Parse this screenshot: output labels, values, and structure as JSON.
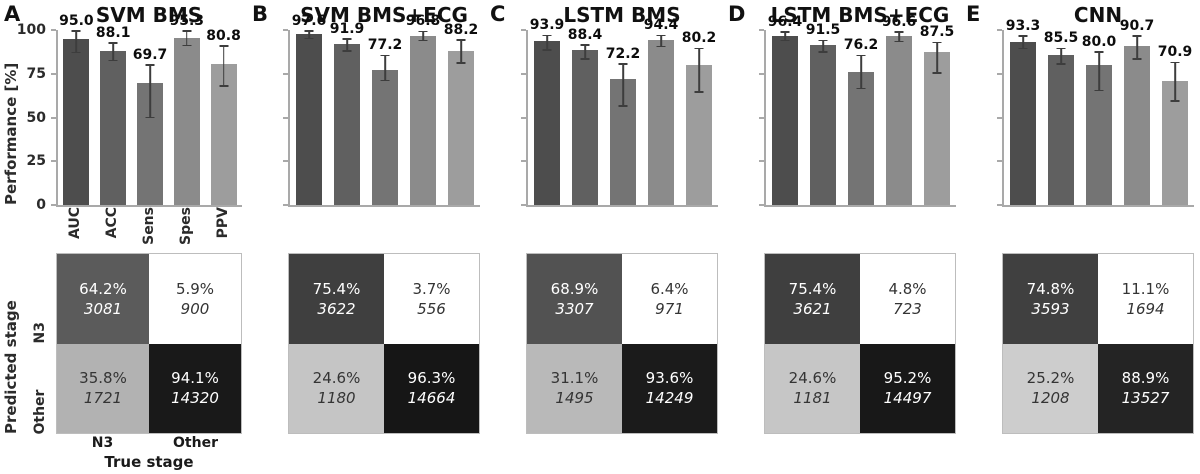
{
  "figure": {
    "ylabel": "Performance [%]",
    "ytick_labels": [
      "100",
      "75",
      "50",
      "25",
      "0"
    ],
    "ytick_values": [
      100,
      75,
      50,
      25,
      0
    ],
    "xtick_labels": [
      "AUC",
      "ACC",
      "Sens",
      "Spes",
      "PPV"
    ],
    "matrix_ylabel": "Predicted stage",
    "matrix_xlabel": "True stage",
    "matrix_row_labels": [
      "N3",
      "Other"
    ],
    "matrix_col_labels": [
      "N3",
      "Other"
    ],
    "bar_colors": [
      "#4d4d4d",
      "#606060",
      "#747474",
      "#8b8b8b",
      "#9d9d9d"
    ],
    "spine_color": "#a9a9a9",
    "errbar_color": "#3d3d3d"
  },
  "chart_data": [
    {
      "type": "bar",
      "panel": "A",
      "title": "SVM BMS",
      "categories": [
        "AUC",
        "ACC",
        "Sens",
        "Spes",
        "PPV"
      ],
      "values": [
        95.0,
        88.1,
        69.7,
        95.3,
        80.8
      ],
      "value_labels": [
        "95.0",
        "88.1",
        "69.7",
        "95.3",
        "80.8"
      ],
      "err_high": [
        99.0,
        92.0,
        79.5,
        99.0,
        90.5
      ],
      "err_low": [
        87.5,
        83.0,
        50.5,
        91.5,
        68.5
      ],
      "ylabel": "Performance [%]",
      "ylim": [
        0,
        100
      ],
      "yticks": [
        0,
        25,
        50,
        75,
        100
      ]
    },
    {
      "type": "heatmap",
      "panel": "A",
      "xlabel": "True stage",
      "ylabel": "Predicted stage",
      "columns": [
        "N3",
        "Other"
      ],
      "rows": [
        "N3",
        "Other"
      ],
      "cells": [
        [
          {
            "pct": "64.2%",
            "count": "3081",
            "bg": "#5b5b5b",
            "fg": "#ffffff"
          },
          {
            "pct": "5.9%",
            "count": "900",
            "bg": "#ffffff",
            "fg": "#343434"
          }
        ],
        [
          {
            "pct": "35.8%",
            "count": "1721",
            "bg": "#b2b2b2",
            "fg": "#343434"
          },
          {
            "pct": "94.1%",
            "count": "14320",
            "bg": "#191919",
            "fg": "#ffffff"
          }
        ]
      ]
    },
    {
      "type": "bar",
      "panel": "B",
      "title": "SVM BMS+ECG",
      "categories": [
        "AUC",
        "ACC",
        "Sens",
        "Spes",
        "PPV"
      ],
      "values": [
        97.6,
        91.9,
        77.2,
        96.8,
        88.2
      ],
      "value_labels": [
        "97.6",
        "91.9",
        "77.2",
        "96.8",
        "88.2"
      ],
      "err_high": [
        99.0,
        94.5,
        85.0,
        98.7,
        94.0
      ],
      "err_low": [
        95.5,
        88.5,
        71.5,
        94.5,
        81.5
      ],
      "ylabel": "Performance [%]",
      "ylim": [
        0,
        100
      ],
      "yticks": [
        0,
        25,
        50,
        75,
        100
      ]
    },
    {
      "type": "heatmap",
      "panel": "B",
      "xlabel": "True stage",
      "ylabel": "Predicted stage",
      "columns": [
        "N3",
        "Other"
      ],
      "rows": [
        "N3",
        "Other"
      ],
      "cells": [
        [
          {
            "pct": "75.4%",
            "count": "3622",
            "bg": "#3f3f3f",
            "fg": "#ffffff"
          },
          {
            "pct": "3.7%",
            "count": "556",
            "bg": "#ffffff",
            "fg": "#343434"
          }
        ],
        [
          {
            "pct": "24.6%",
            "count": "1180",
            "bg": "#c5c5c5",
            "fg": "#343434"
          },
          {
            "pct": "96.3%",
            "count": "14664",
            "bg": "#161616",
            "fg": "#ffffff"
          }
        ]
      ]
    },
    {
      "type": "bar",
      "panel": "C",
      "title": "LSTM BMS",
      "categories": [
        "AUC",
        "ACC",
        "Sens",
        "Spes",
        "PPV"
      ],
      "values": [
        93.9,
        88.4,
        72.2,
        94.4,
        80.2
      ],
      "value_labels": [
        "93.9",
        "88.4",
        "72.2",
        "94.4",
        "80.2"
      ],
      "err_high": [
        96.5,
        91.0,
        80.0,
        96.5,
        89.0
      ],
      "err_low": [
        89.0,
        84.0,
        57.0,
        91.0,
        65.0
      ],
      "ylabel": "Performance [%]",
      "ylim": [
        0,
        100
      ],
      "yticks": [
        0,
        25,
        50,
        75,
        100
      ]
    },
    {
      "type": "heatmap",
      "panel": "C",
      "xlabel": "True stage",
      "ylabel": "Predicted stage",
      "columns": [
        "N3",
        "Other"
      ],
      "rows": [
        "N3",
        "Other"
      ],
      "cells": [
        [
          {
            "pct": "68.9%",
            "count": "3307",
            "bg": "#525252",
            "fg": "#ffffff"
          },
          {
            "pct": "6.4%",
            "count": "971",
            "bg": "#ffffff",
            "fg": "#343434"
          }
        ],
        [
          {
            "pct": "31.1%",
            "count": "1495",
            "bg": "#b9b9b9",
            "fg": "#343434"
          },
          {
            "pct": "93.6%",
            "count": "14249",
            "bg": "#1b1b1b",
            "fg": "#ffffff"
          }
        ]
      ]
    },
    {
      "type": "bar",
      "panel": "D",
      "title": "LSTM BMS+ECG",
      "categories": [
        "AUC",
        "ACC",
        "Sens",
        "Spes",
        "PPV"
      ],
      "values": [
        96.4,
        91.5,
        76.2,
        96.6,
        87.5
      ],
      "value_labels": [
        "96.4",
        "91.5",
        "76.2",
        "96.6",
        "87.5"
      ],
      "err_high": [
        98.5,
        93.5,
        85.0,
        98.5,
        92.5
      ],
      "err_low": [
        94.5,
        88.0,
        67.0,
        94.0,
        76.0
      ],
      "ylabel": "Performance [%]",
      "ylim": [
        0,
        100
      ],
      "yticks": [
        0,
        25,
        50,
        75,
        100
      ]
    },
    {
      "type": "heatmap",
      "panel": "D",
      "xlabel": "True stage",
      "ylabel": "Predicted stage",
      "columns": [
        "N3",
        "Other"
      ],
      "rows": [
        "N3",
        "Other"
      ],
      "cells": [
        [
          {
            "pct": "75.4%",
            "count": "3621",
            "bg": "#3f3f3f",
            "fg": "#ffffff"
          },
          {
            "pct": "4.8%",
            "count": "723",
            "bg": "#ffffff",
            "fg": "#343434"
          }
        ],
        [
          {
            "pct": "24.6%",
            "count": "1181",
            "bg": "#c6c6c6",
            "fg": "#343434"
          },
          {
            "pct": "95.2%",
            "count": "14497",
            "bg": "#181818",
            "fg": "#ffffff"
          }
        ]
      ]
    },
    {
      "type": "bar",
      "panel": "E",
      "title": "CNN",
      "categories": [
        "AUC",
        "ACC",
        "Sens",
        "Spes",
        "PPV"
      ],
      "values": [
        93.3,
        85.5,
        80.0,
        90.7,
        70.9
      ],
      "value_labels": [
        "93.3",
        "85.5",
        "80.0",
        "90.7",
        "70.9"
      ],
      "err_high": [
        96.0,
        89.0,
        87.0,
        96.0,
        81.0
      ],
      "err_low": [
        90.0,
        81.0,
        66.0,
        84.0,
        60.0
      ],
      "ylabel": "Performance [%]",
      "ylim": [
        0,
        100
      ],
      "yticks": [
        0,
        25,
        50,
        75,
        100
      ]
    },
    {
      "type": "heatmap",
      "panel": "E",
      "xlabel": "True stage",
      "ylabel": "Predicted stage",
      "columns": [
        "N3",
        "Other"
      ],
      "rows": [
        "N3",
        "Other"
      ],
      "cells": [
        [
          {
            "pct": "74.8%",
            "count": "3593",
            "bg": "#404040",
            "fg": "#ffffff"
          },
          {
            "pct": "11.1%",
            "count": "1694",
            "bg": "#ffffff",
            "fg": "#343434"
          }
        ],
        [
          {
            "pct": "25.2%",
            "count": "1208",
            "bg": "#cdcdcd",
            "fg": "#343434"
          },
          {
            "pct": "88.9%",
            "count": "13527",
            "bg": "#242424",
            "fg": "#ffffff"
          }
        ]
      ]
    }
  ]
}
